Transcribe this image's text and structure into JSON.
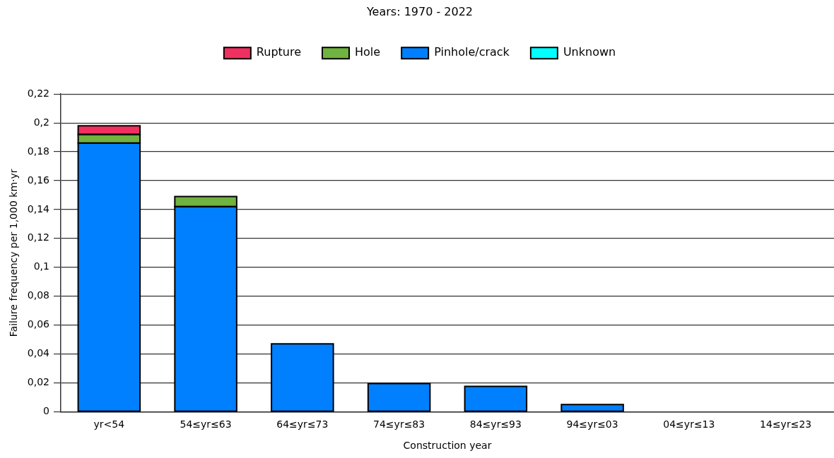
{
  "chart_data": {
    "type": "bar",
    "title": "Years: 1970 - 2022",
    "xlabel": "Construction year",
    "ylabel": "Failure frequency per 1,000 km·yr",
    "categories": [
      "yr<54",
      "54≤yr≤63",
      "64≤yr≤73",
      "74≤yr≤83",
      "84≤yr≤93",
      "94≤yr≤03",
      "04≤yr≤13",
      "14≤yr≤23"
    ],
    "stacked": true,
    "series": [
      {
        "name": "Unknown",
        "color": "#00ffff",
        "values": [
          0,
          0,
          0,
          0,
          0,
          0,
          0,
          0
        ]
      },
      {
        "name": "Pinhole/crack",
        "color": "#0080ff",
        "values": [
          0.186,
          0.142,
          0.047,
          0.0195,
          0.0175,
          0.005,
          0,
          0
        ]
      },
      {
        "name": "Hole",
        "color": "#70b340",
        "values": [
          0.006,
          0.007,
          0,
          0,
          0,
          0,
          0,
          0
        ]
      },
      {
        "name": "Rupture",
        "color": "#f03060",
        "values": [
          0.006,
          null,
          0,
          0,
          0,
          0,
          0,
          0
        ]
      }
    ],
    "ylim": [
      0,
      0.22
    ],
    "yticks": [
      {
        "value": 0,
        "label": "0"
      },
      {
        "value": 0.02,
        "label": "0,02"
      },
      {
        "value": 0.04,
        "label": "0,04"
      },
      {
        "value": 0.06,
        "label": "0,06"
      },
      {
        "value": 0.08,
        "label": "0,08"
      },
      {
        "value": 0.1,
        "label": "0,1"
      },
      {
        "value": 0.12,
        "label": "0,12"
      },
      {
        "value": 0.14,
        "label": "0,14"
      },
      {
        "value": 0.16,
        "label": "0,16"
      },
      {
        "value": 0.18,
        "label": "0,18"
      },
      {
        "value": 0.2,
        "label": "0,2"
      },
      {
        "value": 0.22,
        "label": "0,22"
      }
    ],
    "grid": "y",
    "legend": "top"
  }
}
